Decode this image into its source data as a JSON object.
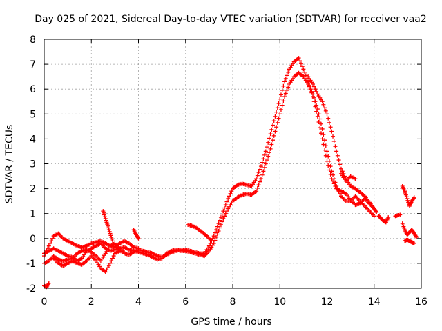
{
  "chart_data": {
    "type": "scatter",
    "title": "Day 025 of 2021, Sidereal Day-to-day VTEC variation (SDTVAR) for receiver vaa2",
    "xlabel": "GPS time / hours",
    "ylabel": "SDTVAR / TECUs",
    "xlim": [
      0,
      16
    ],
    "ylim": [
      -2,
      8
    ],
    "x_ticks": [
      0,
      2,
      4,
      6,
      8,
      10,
      12,
      14,
      16
    ],
    "y_ticks": [
      -2,
      -1,
      0,
      1,
      2,
      3,
      4,
      5,
      6,
      7,
      8
    ],
    "grid": true,
    "marker": "+",
    "series": [
      {
        "name": "SDTVAR",
        "color": "#ff0000",
        "segments": [
          [
            [
              0.0,
              -1.9
            ],
            [
              0.1,
              -1.95
            ],
            [
              0.2,
              -1.8
            ]
          ],
          [
            [
              0.0,
              -0.6
            ],
            [
              0.2,
              -0.5
            ],
            [
              0.4,
              -0.4
            ],
            [
              0.6,
              -0.5
            ],
            [
              0.8,
              -0.6
            ],
            [
              1.0,
              -0.7
            ],
            [
              1.2,
              -0.75
            ],
            [
              1.4,
              -0.9
            ],
            [
              1.6,
              -0.8
            ],
            [
              1.8,
              -0.5
            ],
            [
              2.0,
              -0.4
            ],
            [
              2.2,
              -0.3
            ],
            [
              2.4,
              -0.2
            ],
            [
              2.6,
              -0.4
            ],
            [
              2.8,
              -0.5
            ],
            [
              3.0,
              -0.45
            ],
            [
              3.2,
              -0.4
            ],
            [
              3.4,
              -0.35
            ],
            [
              3.6,
              -0.45
            ],
            [
              3.8,
              -0.5
            ],
            [
              4.0,
              -0.55
            ],
            [
              4.2,
              -0.6
            ],
            [
              4.4,
              -0.65
            ],
            [
              4.6,
              -0.75
            ],
            [
              4.8,
              -0.85
            ],
            [
              5.0,
              -0.8
            ],
            [
              5.2,
              -0.6
            ],
            [
              5.4,
              -0.5
            ],
            [
              5.6,
              -0.45
            ],
            [
              5.8,
              -0.5
            ],
            [
              6.0,
              -0.5
            ],
            [
              6.2,
              -0.55
            ],
            [
              6.4,
              -0.6
            ],
            [
              6.6,
              -0.65
            ],
            [
              6.8,
              -0.7
            ],
            [
              7.0,
              -0.5
            ],
            [
              7.2,
              -0.2
            ],
            [
              7.4,
              0.3
            ],
            [
              7.6,
              0.8
            ],
            [
              7.8,
              1.2
            ],
            [
              8.0,
              1.5
            ],
            [
              8.2,
              1.65
            ],
            [
              8.4,
              1.75
            ],
            [
              8.6,
              1.8
            ],
            [
              8.8,
              1.75
            ],
            [
              9.0,
              1.9
            ],
            [
              9.2,
              2.4
            ],
            [
              9.4,
              3.0
            ],
            [
              9.6,
              3.6
            ],
            [
              9.8,
              4.3
            ],
            [
              10.0,
              5.0
            ],
            [
              10.2,
              5.7
            ],
            [
              10.4,
              6.2
            ],
            [
              10.6,
              6.5
            ],
            [
              10.8,
              6.65
            ],
            [
              11.0,
              6.5
            ],
            [
              11.2,
              6.2
            ],
            [
              11.4,
              5.8
            ],
            [
              11.6,
              5.2
            ],
            [
              11.8,
              4.4
            ],
            [
              12.0,
              3.5
            ],
            [
              12.2,
              2.7
            ],
            [
              12.4,
              2.1
            ],
            [
              12.6,
              1.7
            ],
            [
              12.8,
              1.5
            ],
            [
              13.0,
              1.5
            ],
            [
              13.2,
              1.7
            ],
            [
              13.4,
              1.5
            ],
            [
              13.6,
              1.3
            ],
            [
              13.8,
              1.1
            ],
            [
              14.0,
              0.9
            ]
          ],
          [
            [
              0.0,
              -1.0
            ],
            [
              0.2,
              -0.9
            ],
            [
              0.4,
              -0.7
            ],
            [
              0.6,
              -0.85
            ],
            [
              0.8,
              -0.9
            ],
            [
              1.0,
              -0.85
            ],
            [
              1.2,
              -0.8
            ],
            [
              1.4,
              -0.6
            ],
            [
              1.6,
              -0.5
            ],
            [
              1.8,
              -0.45
            ],
            [
              2.0,
              -0.55
            ],
            [
              2.2,
              -0.7
            ],
            [
              2.4,
              -0.9
            ],
            [
              2.6,
              -0.6
            ],
            [
              2.8,
              -0.3
            ],
            [
              3.0,
              -0.2
            ],
            [
              3.2,
              -0.4
            ],
            [
              3.4,
              -0.6
            ],
            [
              3.6,
              -0.65
            ],
            [
              3.8,
              -0.55
            ],
            [
              4.0,
              -0.45
            ],
            [
              4.2,
              -0.5
            ],
            [
              4.4,
              -0.55
            ],
            [
              4.6,
              -0.6
            ],
            [
              4.8,
              -0.7
            ],
            [
              5.0,
              -0.75
            ],
            [
              5.2,
              -0.65
            ],
            [
              5.4,
              -0.55
            ],
            [
              5.6,
              -0.5
            ],
            [
              5.8,
              -0.45
            ],
            [
              6.0,
              -0.45
            ],
            [
              6.2,
              -0.5
            ],
            [
              6.4,
              -0.55
            ],
            [
              6.6,
              -0.6
            ],
            [
              6.8,
              -0.6
            ],
            [
              7.0,
              -0.3
            ],
            [
              7.2,
              0.1
            ],
            [
              7.4,
              0.6
            ],
            [
              7.6,
              1.1
            ],
            [
              7.8,
              1.6
            ],
            [
              8.0,
              2.0
            ],
            [
              8.2,
              2.15
            ],
            [
              8.4,
              2.2
            ],
            [
              8.6,
              2.15
            ],
            [
              8.8,
              2.1
            ],
            [
              9.0,
              2.4
            ],
            [
              9.2,
              2.9
            ],
            [
              9.4,
              3.5
            ],
            [
              9.6,
              4.2
            ],
            [
              9.8,
              4.9
            ],
            [
              10.0,
              5.6
            ],
            [
              10.2,
              6.3
            ],
            [
              10.4,
              6.8
            ],
            [
              10.6,
              7.1
            ],
            [
              10.8,
              7.25
            ],
            [
              11.0,
              6.8
            ],
            [
              11.2,
              6.3
            ],
            [
              11.4,
              5.7
            ],
            [
              11.6,
              4.9
            ],
            [
              11.8,
              4.0
            ],
            [
              12.0,
              3.1
            ],
            [
              12.2,
              2.4
            ],
            [
              12.4,
              2.0
            ],
            [
              12.6,
              1.9
            ],
            [
              12.8,
              1.8
            ],
            [
              13.0,
              1.55
            ],
            [
              13.2,
              1.35
            ],
            [
              13.4,
              1.4
            ],
            [
              13.6,
              1.6
            ],
            [
              13.8,
              1.4
            ],
            [
              14.0,
              1.2
            ]
          ],
          [
            [
              0.0,
              -0.7
            ],
            [
              0.2,
              -0.3
            ],
            [
              0.4,
              0.1
            ],
            [
              0.6,
              0.2
            ],
            [
              0.8,
              0.0
            ],
            [
              1.0,
              -0.1
            ],
            [
              1.2,
              -0.2
            ],
            [
              1.4,
              -0.3
            ],
            [
              1.6,
              -0.35
            ],
            [
              1.8,
              -0.3
            ],
            [
              2.0,
              -0.2
            ],
            [
              2.2,
              -0.15
            ],
            [
              2.4,
              -0.1
            ],
            [
              2.6,
              -0.2
            ],
            [
              2.8,
              -0.3
            ],
            [
              3.0,
              -0.35
            ],
            [
              3.2,
              -0.2
            ],
            [
              3.4,
              -0.1
            ],
            [
              3.6,
              -0.2
            ],
            [
              3.8,
              -0.35
            ],
            [
              4.0,
              -0.4
            ]
          ],
          [
            [
              0.4,
              -0.8
            ],
            [
              0.6,
              -1.0
            ],
            [
              0.8,
              -1.1
            ],
            [
              1.0,
              -1.0
            ],
            [
              1.2,
              -0.9
            ],
            [
              1.4,
              -1.0
            ],
            [
              1.6,
              -1.05
            ],
            [
              1.8,
              -0.9
            ],
            [
              2.0,
              -0.7
            ],
            [
              2.2,
              -0.9
            ],
            [
              2.4,
              -1.2
            ],
            [
              2.6,
              -1.35
            ],
            [
              2.8,
              -1.0
            ],
            [
              3.0,
              -0.6
            ],
            [
              3.2,
              -0.5
            ],
            [
              3.4,
              -0.55
            ]
          ],
          [
            [
              2.5,
              1.1
            ],
            [
              2.6,
              0.8
            ],
            [
              2.7,
              0.5
            ],
            [
              2.8,
              0.2
            ],
            [
              2.9,
              -0.1
            ]
          ],
          [
            [
              3.8,
              0.35
            ],
            [
              3.9,
              0.15
            ],
            [
              4.0,
              0.0
            ]
          ],
          [
            [
              6.1,
              0.55
            ],
            [
              6.3,
              0.5
            ],
            [
              6.5,
              0.4
            ],
            [
              6.7,
              0.25
            ],
            [
              6.9,
              0.1
            ],
            [
              7.1,
              -0.1
            ]
          ],
          [
            [
              11.2,
              6.5
            ],
            [
              11.4,
              6.2
            ],
            [
              11.6,
              5.8
            ],
            [
              11.8,
              5.5
            ],
            [
              12.0,
              5.0
            ],
            [
              12.2,
              4.3
            ],
            [
              12.4,
              3.5
            ],
            [
              12.6,
              2.8
            ],
            [
              12.8,
              2.4
            ],
            [
              13.0,
              2.1
            ],
            [
              13.2,
              2.0
            ],
            [
              13.4,
              1.85
            ],
            [
              13.6,
              1.7
            ],
            [
              13.8,
              1.45
            ],
            [
              14.0,
              1.2
            ],
            [
              14.1,
              1.05
            ]
          ],
          [
            [
              12.6,
              2.6
            ],
            [
              12.8,
              2.3
            ],
            [
              13.0,
              2.5
            ],
            [
              13.2,
              2.4
            ]
          ],
          [
            [
              14.2,
              0.9
            ],
            [
              14.3,
              0.8
            ],
            [
              14.4,
              0.7
            ],
            [
              14.5,
              0.65
            ],
            [
              14.6,
              0.85
            ]
          ],
          [
            [
              14.9,
              0.9
            ],
            [
              15.1,
              0.95
            ]
          ],
          [
            [
              15.2,
              2.1
            ],
            [
              15.3,
              1.9
            ],
            [
              15.4,
              1.6
            ],
            [
              15.5,
              1.3
            ],
            [
              15.6,
              1.5
            ],
            [
              15.7,
              1.65
            ]
          ],
          [
            [
              15.2,
              0.6
            ],
            [
              15.3,
              0.35
            ],
            [
              15.4,
              0.15
            ],
            [
              15.5,
              0.25
            ],
            [
              15.6,
              0.35
            ],
            [
              15.7,
              0.2
            ],
            [
              15.8,
              0.05
            ]
          ],
          [
            [
              15.3,
              -0.1
            ],
            [
              15.4,
              -0.05
            ],
            [
              15.5,
              -0.1
            ],
            [
              15.6,
              -0.15
            ],
            [
              15.7,
              -0.2
            ]
          ]
        ]
      }
    ]
  }
}
